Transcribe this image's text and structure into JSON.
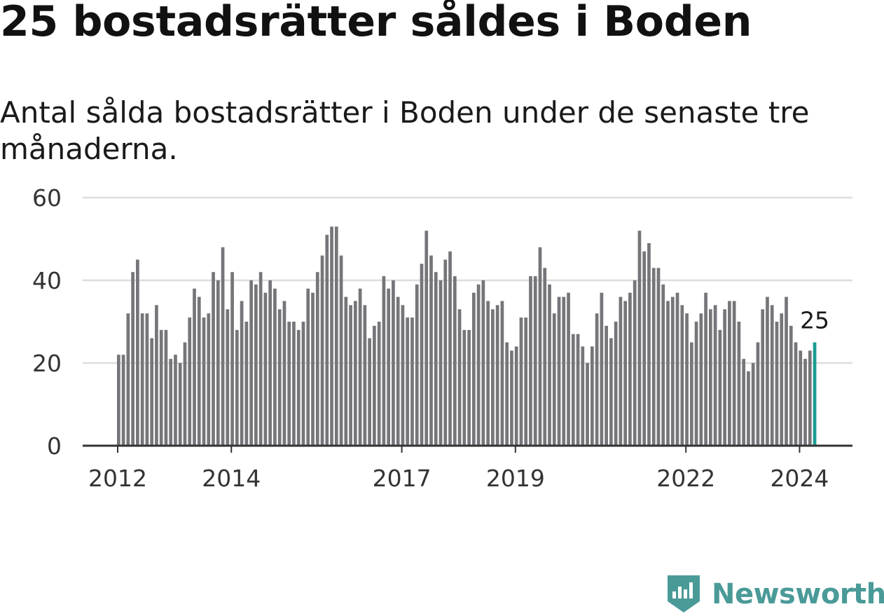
{
  "header": {
    "title": "25 bostadsrätter såldes i Boden",
    "subtitle": "Antal sålda bostadsrätter i Boden under de senaste tre månaderna."
  },
  "brand": {
    "name": "Newsworthy",
    "logo_icon": "newsworthy-chart-icon",
    "color": "#4a9a98"
  },
  "colors": {
    "bar": "#75757a",
    "highlight": "#1a9c92",
    "grid": "#dddddd",
    "axis": "#333333"
  },
  "chart_data": {
    "type": "bar",
    "title": "25 bostadsrätter såldes i Boden",
    "xlabel": "",
    "ylabel": "",
    "ylim": [
      0,
      60
    ],
    "yticks": [
      0,
      20,
      40,
      60
    ],
    "grid": true,
    "start": "2012-01",
    "xticks": [
      {
        "label": "2012",
        "index": 0
      },
      {
        "label": "2014",
        "index": 24
      },
      {
        "label": "2017",
        "index": 60
      },
      {
        "label": "2019",
        "index": 84
      },
      {
        "label": "2022",
        "index": 120
      },
      {
        "label": "2024",
        "index": 144
      }
    ],
    "highlight_label": "25",
    "values": [
      22,
      22,
      32,
      42,
      45,
      32,
      32,
      26,
      34,
      28,
      28,
      21,
      22,
      20,
      25,
      31,
      38,
      36,
      31,
      32,
      42,
      40,
      48,
      33,
      42,
      28,
      35,
      30,
      40,
      39,
      42,
      37,
      40,
      38,
      33,
      35,
      30,
      30,
      28,
      30,
      38,
      37,
      42,
      46,
      51,
      53,
      53,
      46,
      36,
      34,
      35,
      38,
      34,
      26,
      29,
      30,
      41,
      38,
      40,
      36,
      34,
      31,
      31,
      39,
      44,
      52,
      46,
      42,
      40,
      45,
      47,
      41,
      33,
      28,
      28,
      37,
      39,
      40,
      35,
      33,
      34,
      35,
      25,
      23,
      24,
      31,
      31,
      41,
      41,
      48,
      43,
      39,
      32,
      36,
      36,
      37,
      27,
      27,
      24,
      20,
      24,
      32,
      37,
      29,
      26,
      30,
      36,
      35,
      37,
      40,
      52,
      47,
      49,
      43,
      43,
      39,
      35,
      36,
      37,
      34,
      32,
      25,
      30,
      32,
      37,
      33,
      34,
      28,
      33,
      35,
      35,
      30,
      21,
      18,
      20,
      25,
      33,
      36,
      34,
      30,
      32,
      36,
      29,
      25,
      23,
      21,
      23,
      25
    ]
  }
}
